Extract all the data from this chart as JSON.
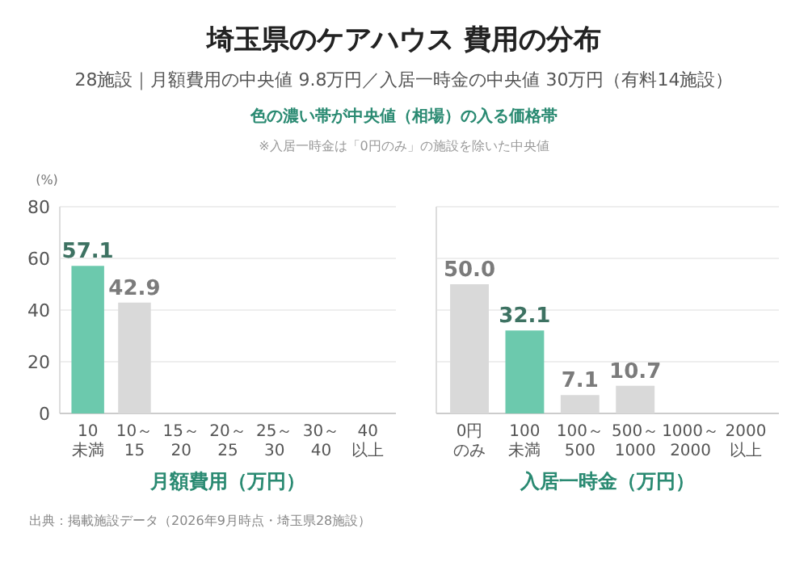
{
  "chart_data": [
    {
      "type": "bar",
      "title": "埼玉県のケアハウス 費用の分布",
      "subtitle": "28施設｜月額費用の中央値 9.8万円／入居一時金の中央値 30万円（有料14施設）",
      "annotations": [
        "色の濃い帯が中央値（相場）の入る価格帯",
        "※入居一時金は「0円のみ」の施設を除いた中央値",
        "出典：掲載施設データ（2026年9月時点・埼玉県28施設）"
      ],
      "xlabel": "月額費用（万円）",
      "ylabel": "(%)",
      "categories": [
        "10未満",
        "10～15",
        "15～20",
        "20～25",
        "25～30",
        "30～40",
        "40以上"
      ],
      "values": [
        57.1,
        42.9,
        0,
        0,
        0,
        0,
        0
      ],
      "colors": [
        "#6cc9ad",
        "#d9d9d9",
        "#d9d9d9",
        "#d9d9d9",
        "#d9d9d9",
        "#d9d9d9",
        "#d9d9d9"
      ],
      "value_labels": [
        "57.1",
        "42.9",
        null,
        null,
        null,
        null,
        null
      ],
      "ylim": [
        0,
        80
      ],
      "yticks": [
        0,
        20,
        40,
        60,
        80
      ],
      "grid": "y"
    },
    {
      "type": "bar",
      "xlabel": "入居一時金（万円）",
      "categories": [
        "0円のみ",
        "100未満",
        "100～500",
        "500～1000",
        "1000～2000",
        "2000以上"
      ],
      "values": [
        50.0,
        32.1,
        7.1,
        10.7,
        0,
        0
      ],
      "colors": [
        "#d9d9d9",
        "#6cc9ad",
        "#d9d9d9",
        "#d9d9d9",
        "#d9d9d9",
        "#d9d9d9"
      ],
      "value_labels": [
        "50.0",
        "32.1",
        "7.1",
        "10.7",
        null,
        null
      ],
      "ylim": [
        0,
        80
      ],
      "yticks": [
        0,
        20,
        40,
        60,
        80
      ],
      "grid": "y",
      "tick_labels": "x"
    }
  ]
}
